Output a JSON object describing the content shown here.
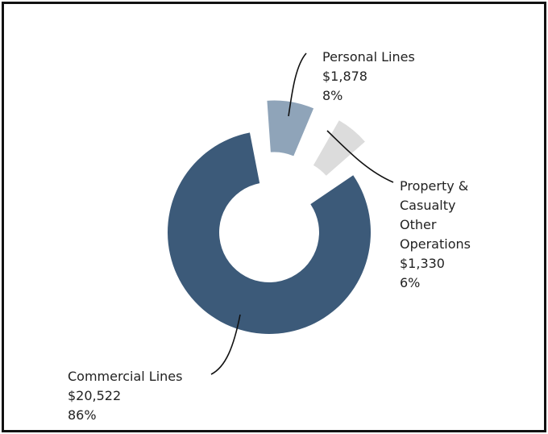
{
  "chart_data": {
    "type": "pie",
    "variant": "donut",
    "unit": "$",
    "slices": [
      {
        "name": "Commercial Lines",
        "value_text": "$20,522",
        "value": 20522,
        "pct_text": "86%",
        "pct": 86,
        "color": "#3c5a79",
        "exploded": false
      },
      {
        "name": "Personal Lines",
        "value_text": "$1,878",
        "value": 1878,
        "pct_text": "8%",
        "pct": 8,
        "color": "#8fa4b9",
        "exploded": true
      },
      {
        "name": "Property & Casualty Other Operations",
        "name_lines": [
          "Property &",
          "Casualty",
          "Other",
          "Operations"
        ],
        "value_text": "$1,330",
        "value": 1330,
        "pct_text": "6%",
        "pct": 6,
        "color": "#dcdcdc",
        "exploded": true
      }
    ]
  }
}
